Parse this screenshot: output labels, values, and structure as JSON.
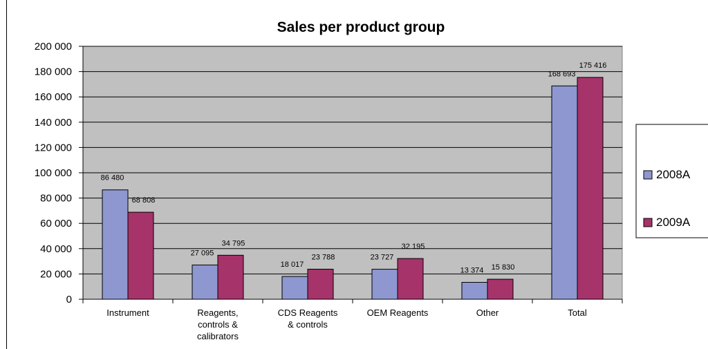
{
  "chart_data": {
    "type": "bar",
    "title": "Sales per product group",
    "xlabel": "",
    "ylabel": "",
    "ylim": [
      0,
      200000
    ],
    "yticks": [
      0,
      20000,
      40000,
      60000,
      80000,
      100000,
      120000,
      140000,
      160000,
      180000,
      200000
    ],
    "ytick_labels": [
      "0",
      "20 000",
      "40 000",
      "60 000",
      "80 000",
      "100 000",
      "120 000",
      "140 000",
      "160 000",
      "180 000",
      "200 000"
    ],
    "grid": true,
    "legend_position": "right",
    "categories": [
      [
        "Instrument"
      ],
      [
        "Reagents,",
        "controls &",
        "calibrators"
      ],
      [
        "CDS Reagents",
        "& controls"
      ],
      [
        "OEM Reagents"
      ],
      [
        "Other"
      ],
      [
        "Total"
      ]
    ],
    "series": [
      {
        "name": "2008A",
        "color": "#8e97cf",
        "values": [
          86480,
          27095,
          18017,
          23727,
          13374,
          168693
        ],
        "labels": [
          "86 480",
          "27 095",
          "18 017",
          "23 727",
          "13 374",
          "168 693"
        ]
      },
      {
        "name": "2009A",
        "color": "#a6336a",
        "values": [
          68808,
          34795,
          23788,
          32195,
          15830,
          175416
        ],
        "labels": [
          "68 808",
          "34 795",
          "23 788",
          "32 195",
          "15 830",
          "175 416"
        ]
      }
    ],
    "plot_background": "#c0c0c0"
  }
}
